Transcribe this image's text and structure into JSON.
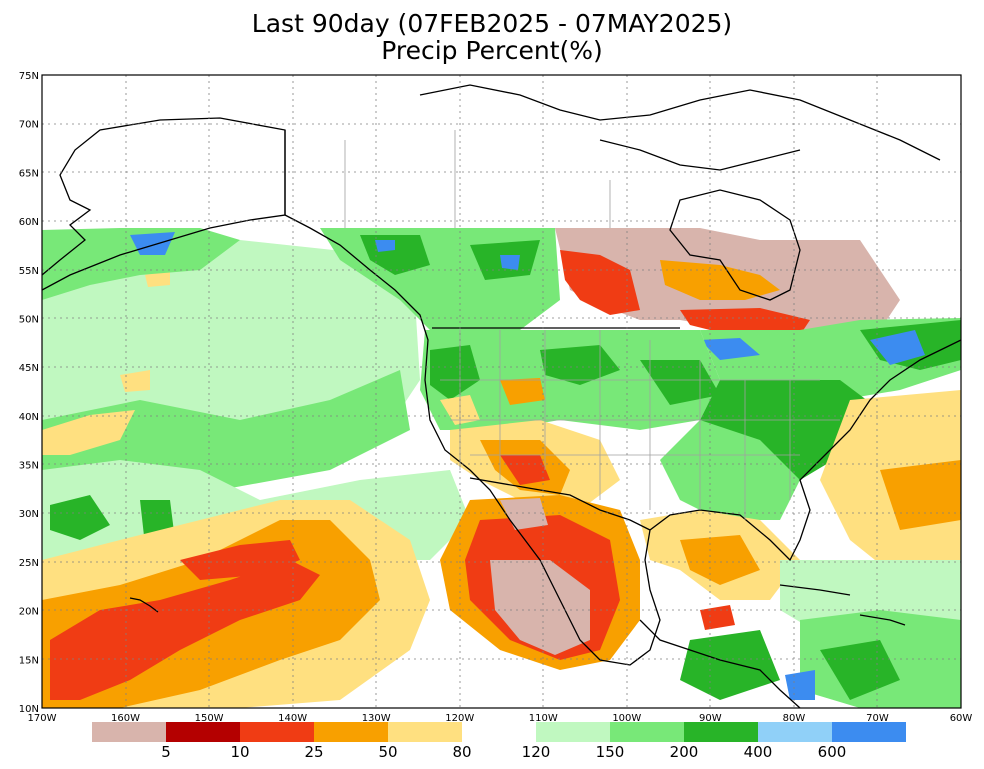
{
  "title": {
    "line1": "Last 90day (07FEB2025 - 07MAY2025)",
    "line2": "Precip Percent(%)"
  },
  "map": {
    "lat_labels": [
      "75N",
      "70N",
      "65N",
      "60N",
      "55N",
      "50N",
      "45N",
      "40N",
      "35N",
      "30N",
      "25N",
      "20N",
      "15N",
      "10N"
    ],
    "lon_labels": [
      "170W",
      "160W",
      "150W",
      "140W",
      "130W",
      "120W",
      "110W",
      "100W",
      "90W",
      "80W",
      "70W",
      "60W"
    ],
    "extent": {
      "lon_min": -170,
      "lon_max": -60,
      "lat_min": 10,
      "lat_max": 75
    }
  },
  "legend": {
    "labels": [
      "5",
      "10",
      "25",
      "50",
      "80",
      "120",
      "150",
      "200",
      "400",
      "600"
    ],
    "colors": [
      "#d8b4ac",
      "#b40000",
      "#f03c14",
      "#f8a000",
      "#ffe080",
      "#ffffff",
      "#c0f8c0",
      "#78e878",
      "#28b428",
      "#90d0f8",
      "#3c8cf0"
    ]
  },
  "colors": {
    "land_outline": "#000000",
    "state_border": "#a0a0a0",
    "grid": "#808080"
  }
}
